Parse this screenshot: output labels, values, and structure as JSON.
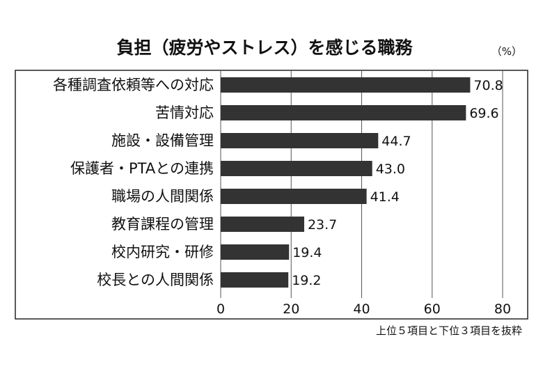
{
  "chart_data": {
    "type": "bar",
    "orientation": "horizontal",
    "title": "負担（疲労やストレス）を感じる職務",
    "unit": "（%）",
    "note": "上位５項目と下位３項目を抜粋",
    "categories": [
      "各種調査依頼等への対応",
      "苦情対応",
      "施設・設備管理",
      "保護者・PTAとの連携",
      "職場の人間関係",
      "教育課程の管理",
      "校内研究・研修",
      "校長との人間関係"
    ],
    "values": [
      70.8,
      69.6,
      44.7,
      43.0,
      41.4,
      23.7,
      19.4,
      19.2
    ],
    "value_labels": [
      "70.8",
      "69.6",
      "44.7",
      "43.0",
      "41.4",
      "23.7",
      "19.4",
      "19.2"
    ],
    "xlim": [
      0,
      80
    ],
    "x_ticks": [
      "0",
      "20",
      "40",
      "60",
      "80"
    ],
    "grid": true,
    "bar_color": "#333333",
    "grid_color": "#555555"
  }
}
